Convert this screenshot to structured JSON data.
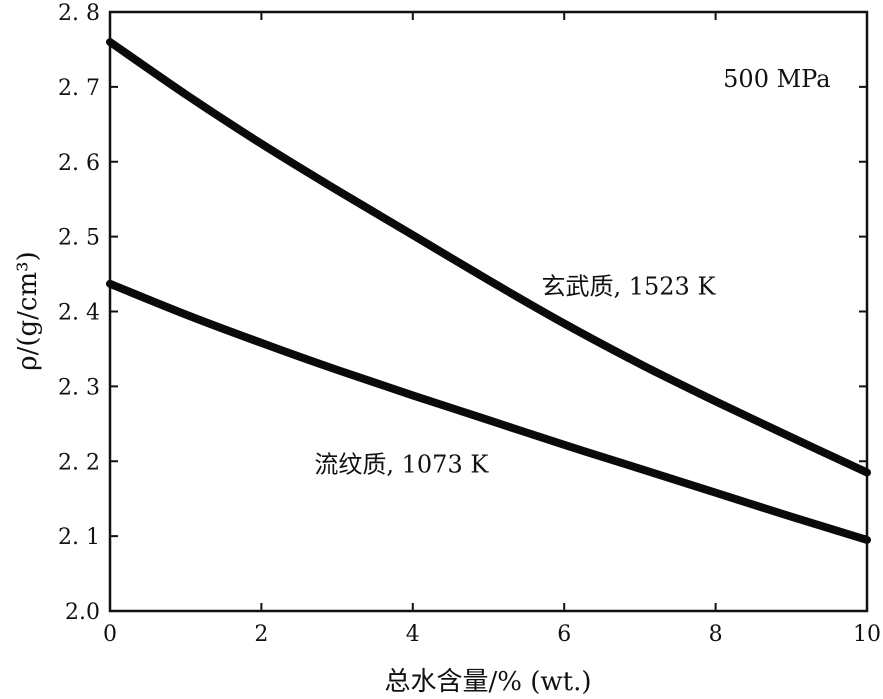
{
  "chart_data": {
    "type": "line",
    "title": "",
    "xlabel": "总水含量/% (wt.)",
    "ylabel": "ρ/(g/cm³)",
    "xlim": [
      0,
      10
    ],
    "ylim": [
      2.0,
      2.8
    ],
    "x_ticks": [
      0,
      2,
      4,
      6,
      8,
      10
    ],
    "x_tick_labels": [
      "0",
      "2",
      "4",
      "6",
      "8",
      "10"
    ],
    "y_ticks": [
      2.0,
      2.1,
      2.2,
      2.3,
      2.4,
      2.5,
      2.6,
      2.7,
      2.8
    ],
    "y_tick_labels": [
      "2.0",
      "2. 1",
      "2. 2",
      "2. 3",
      "2. 4",
      "2. 5",
      "2. 6",
      "2. 7",
      "2. 8"
    ],
    "grid": false,
    "legend": "none",
    "series": [
      {
        "label": "玄武质, 1523  K",
        "color": "#0a0a0a",
        "x": [
          0,
          1,
          2,
          3,
          4,
          5,
          6,
          7,
          8,
          9,
          10
        ],
        "y": [
          2.76,
          2.69,
          2.624,
          2.562,
          2.502,
          2.442,
          2.384,
          2.33,
          2.28,
          2.232,
          2.185
        ]
      },
      {
        "label": "流纹质, 1073 K",
        "color": "#0a0a0a",
        "x": [
          0,
          1,
          2,
          3,
          4,
          5,
          6,
          7,
          8,
          9,
          10
        ],
        "y": [
          2.437,
          2.396,
          2.358,
          2.322,
          2.288,
          2.255,
          2.222,
          2.19,
          2.158,
          2.126,
          2.095
        ]
      }
    ],
    "annotations": [
      {
        "text": "500  MPa",
        "x": 8.1,
        "y": 2.7
      },
      {
        "text": "玄武质, 1523  K",
        "x": 5.7,
        "y": 2.423
      },
      {
        "text": "流纹质, 1073 K",
        "x": 2.7,
        "y": 2.185
      }
    ]
  }
}
